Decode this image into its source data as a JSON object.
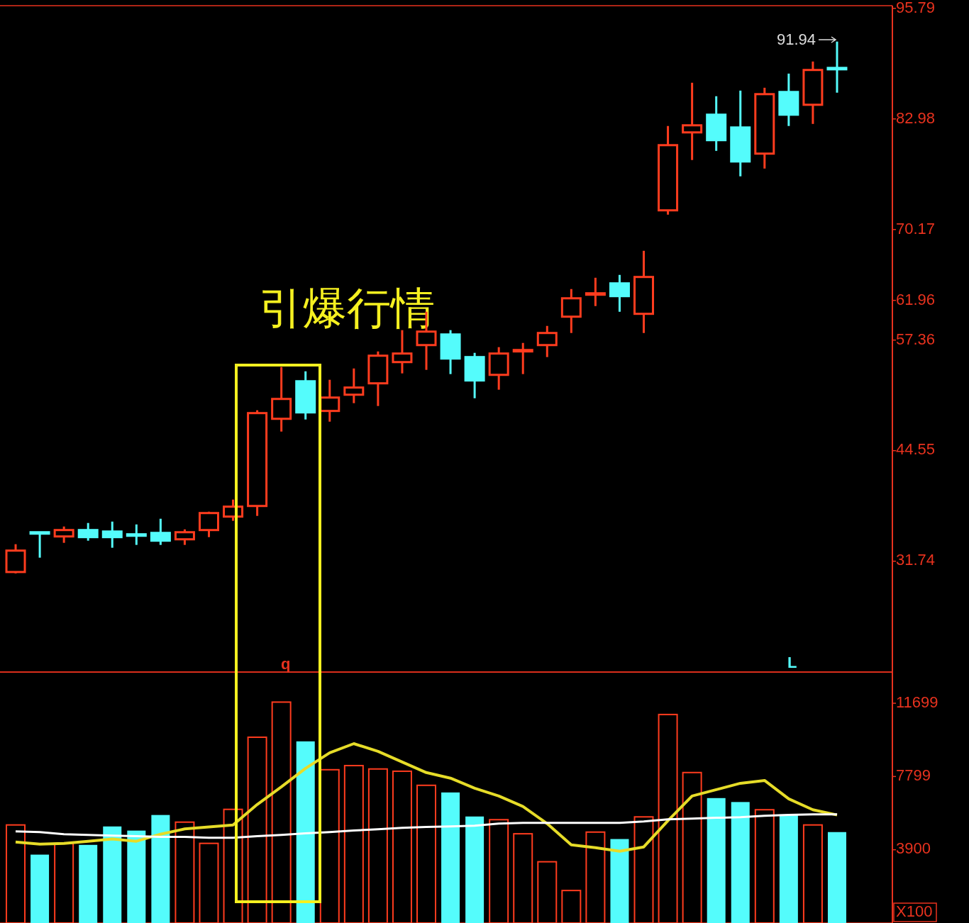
{
  "chart_data": [
    {
      "type": "candlestick",
      "categories": [
        null,
        null,
        null,
        null,
        null,
        null,
        null,
        null,
        null,
        null,
        null,
        null,
        null,
        null,
        null,
        null,
        null,
        null,
        null,
        null,
        null,
        null,
        null,
        null,
        null,
        null,
        null,
        null,
        null,
        null,
        null,
        null,
        null,
        null,
        null
      ],
      "ohlc": [
        [
          30.49,
          33.71,
          30.33,
          32.97
        ],
        [
          35.1,
          35.1,
          32.15,
          35.1
        ],
        [
          34.61,
          35.76,
          33.87,
          35.35
        ],
        [
          35.35,
          36.17,
          34.12,
          34.53
        ],
        [
          35.18,
          36.33,
          33.3,
          34.53
        ],
        [
          34.86,
          36.0,
          33.63,
          34.69
        ],
        [
          35.02,
          36.66,
          33.63,
          34.12
        ],
        [
          34.28,
          35.43,
          33.63,
          35.1
        ],
        [
          35.35,
          37.48,
          34.53,
          37.32
        ],
        [
          36.91,
          38.88,
          36.42,
          38.06
        ],
        [
          38.14,
          49.23,
          36.99,
          48.9
        ],
        [
          48.24,
          54.24,
          46.76,
          50.54
        ],
        [
          52.59,
          53.74,
          48.16,
          48.98
        ],
        [
          49.15,
          52.76,
          47.91,
          50.7
        ],
        [
          51.03,
          54.07,
          50.05,
          51.86
        ],
        [
          52.35,
          56.04,
          49.72,
          55.55
        ],
        [
          54.81,
          58.51,
          53.5,
          55.8
        ],
        [
          56.78,
          60.64,
          53.91,
          58.34
        ],
        [
          58.01,
          58.51,
          53.42,
          55.22
        ],
        [
          55.39,
          55.88,
          50.62,
          52.68
        ],
        [
          53.33,
          56.54,
          51.61,
          55.8
        ],
        [
          56.13,
          57.03,
          53.42,
          56.21
        ],
        [
          56.78,
          59.0,
          55.39,
          58.18
        ],
        [
          60.07,
          63.27,
          58.18,
          62.2
        ],
        [
          62.7,
          64.58,
          61.3,
          62.78
        ],
        [
          63.93,
          64.91,
          60.64,
          62.45
        ],
        [
          60.4,
          67.7,
          58.18,
          64.67
        ],
        [
          72.39,
          82.16,
          71.89,
          79.94
        ],
        [
          81.42,
          87.17,
          78.22,
          82.24
        ],
        [
          83.47,
          85.61,
          79.28,
          80.52
        ],
        [
          81.99,
          86.26,
          76.33,
          78.05
        ],
        [
          78.96,
          86.59,
          77.23,
          85.85
        ],
        [
          86.1,
          88.23,
          82.16,
          83.47
        ],
        [
          84.62,
          89.63,
          82.4,
          88.65
        ],
        [
          88.89,
          91.94,
          86.02,
          88.81
        ]
      ],
      "colors": [
        "#ff3c1e",
        "#54fcfc",
        "#ff3c1e",
        "#54fcfc",
        "#54fcfc",
        "#54fcfc",
        "#54fcfc",
        "#ff3c1e",
        "#ff3c1e",
        "#ff3c1e",
        "#ff3c1e",
        "#ff3c1e",
        "#54fcfc",
        "#ff3c1e",
        "#ff3c1e",
        "#ff3c1e",
        "#ff3c1e",
        "#ff3c1e",
        "#54fcfc",
        "#54fcfc",
        "#ff3c1e",
        "#ff3c1e",
        "#ff3c1e",
        "#ff3c1e",
        "#ff3c1e",
        "#54fcfc",
        "#ff3c1e",
        "#ff3c1e",
        "#ff3c1e",
        "#54fcfc",
        "#54fcfc",
        "#ff3c1e",
        "#54fcfc",
        "#ff3c1e",
        "#54fcfc"
      ],
      "ylim": [
        18.9,
        96.1
      ],
      "yticks": [
        95.79,
        82.98,
        70.17,
        61.96,
        57.36,
        44.55,
        31.74
      ],
      "annotations": [
        "引爆行情",
        "91.94",
        "q",
        "L"
      ]
    },
    {
      "type": "bar",
      "categories": [
        null,
        null,
        null,
        null,
        null,
        null,
        null,
        null,
        null,
        null,
        null,
        null,
        null,
        null,
        null,
        null,
        null,
        null,
        null,
        null,
        null,
        null,
        null,
        null,
        null,
        null,
        null,
        null,
        null,
        null,
        null,
        null,
        null,
        null,
        null
      ],
      "ylabel": "X100",
      "ylim": [
        0,
        13360
      ],
      "yticks": [
        3900,
        7799,
        11699
      ],
      "series": [
        {
          "type": "bar",
          "colors": [
            "#ff3c1e",
            "#54fcfc",
            "#ff3c1e",
            "#54fcfc",
            "#54fcfc",
            "#54fcfc",
            "#54fcfc",
            "#ff3c1e",
            "#ff3c1e",
            "#ff3c1e",
            "#ff3c1e",
            "#ff3c1e",
            "#54fcfc",
            "#ff3c1e",
            "#ff3c1e",
            "#ff3c1e",
            "#ff3c1e",
            "#ff3c1e",
            "#54fcfc",
            "#54fcfc",
            "#ff3c1e",
            "#ff3c1e",
            "#ff3c1e",
            "#ff3c1e",
            "#ff3c1e",
            "#54fcfc",
            "#ff3c1e",
            "#ff3c1e",
            "#ff3c1e",
            "#54fcfc",
            "#54fcfc",
            "#ff3c1e",
            "#54fcfc",
            "#ff3c1e",
            "#54fcfc"
          ],
          "values": [
            5220,
            3640,
            4240,
            4160,
            5140,
            4920,
            5750,
            5370,
            4240,
            6050,
            9890,
            11760,
            9670,
            8160,
            8380,
            8200,
            8080,
            7330,
            6950,
            5670,
            5500,
            4750,
            3260,
            1730,
            4840,
            4470,
            5650,
            11100,
            8010,
            6650,
            6440,
            6030,
            5780,
            5220,
            4840
          ]
        },
        {
          "type": "line",
          "color": "#e6dc28",
          "values": [
            4310,
            4200,
            4240,
            4350,
            4470,
            4350,
            4730,
            5010,
            5110,
            5220,
            6310,
            7250,
            8230,
            9060,
            9550,
            9140,
            8570,
            8010,
            7710,
            7180,
            6760,
            6200,
            5290,
            4160,
            4010,
            3820,
            4050,
            5450,
            6760,
            7100,
            7440,
            7590,
            6610,
            6030,
            5750
          ]
        },
        {
          "type": "line",
          "color": "#ffffff",
          "values": [
            4880,
            4840,
            4730,
            4690,
            4650,
            4620,
            4580,
            4580,
            4540,
            4540,
            4620,
            4690,
            4770,
            4840,
            4920,
            4990,
            5070,
            5110,
            5140,
            5180,
            5290,
            5330,
            5330,
            5330,
            5330,
            5330,
            5410,
            5520,
            5560,
            5600,
            5630,
            5710,
            5750,
            5780,
            5780
          ]
        }
      ]
    }
  ]
}
